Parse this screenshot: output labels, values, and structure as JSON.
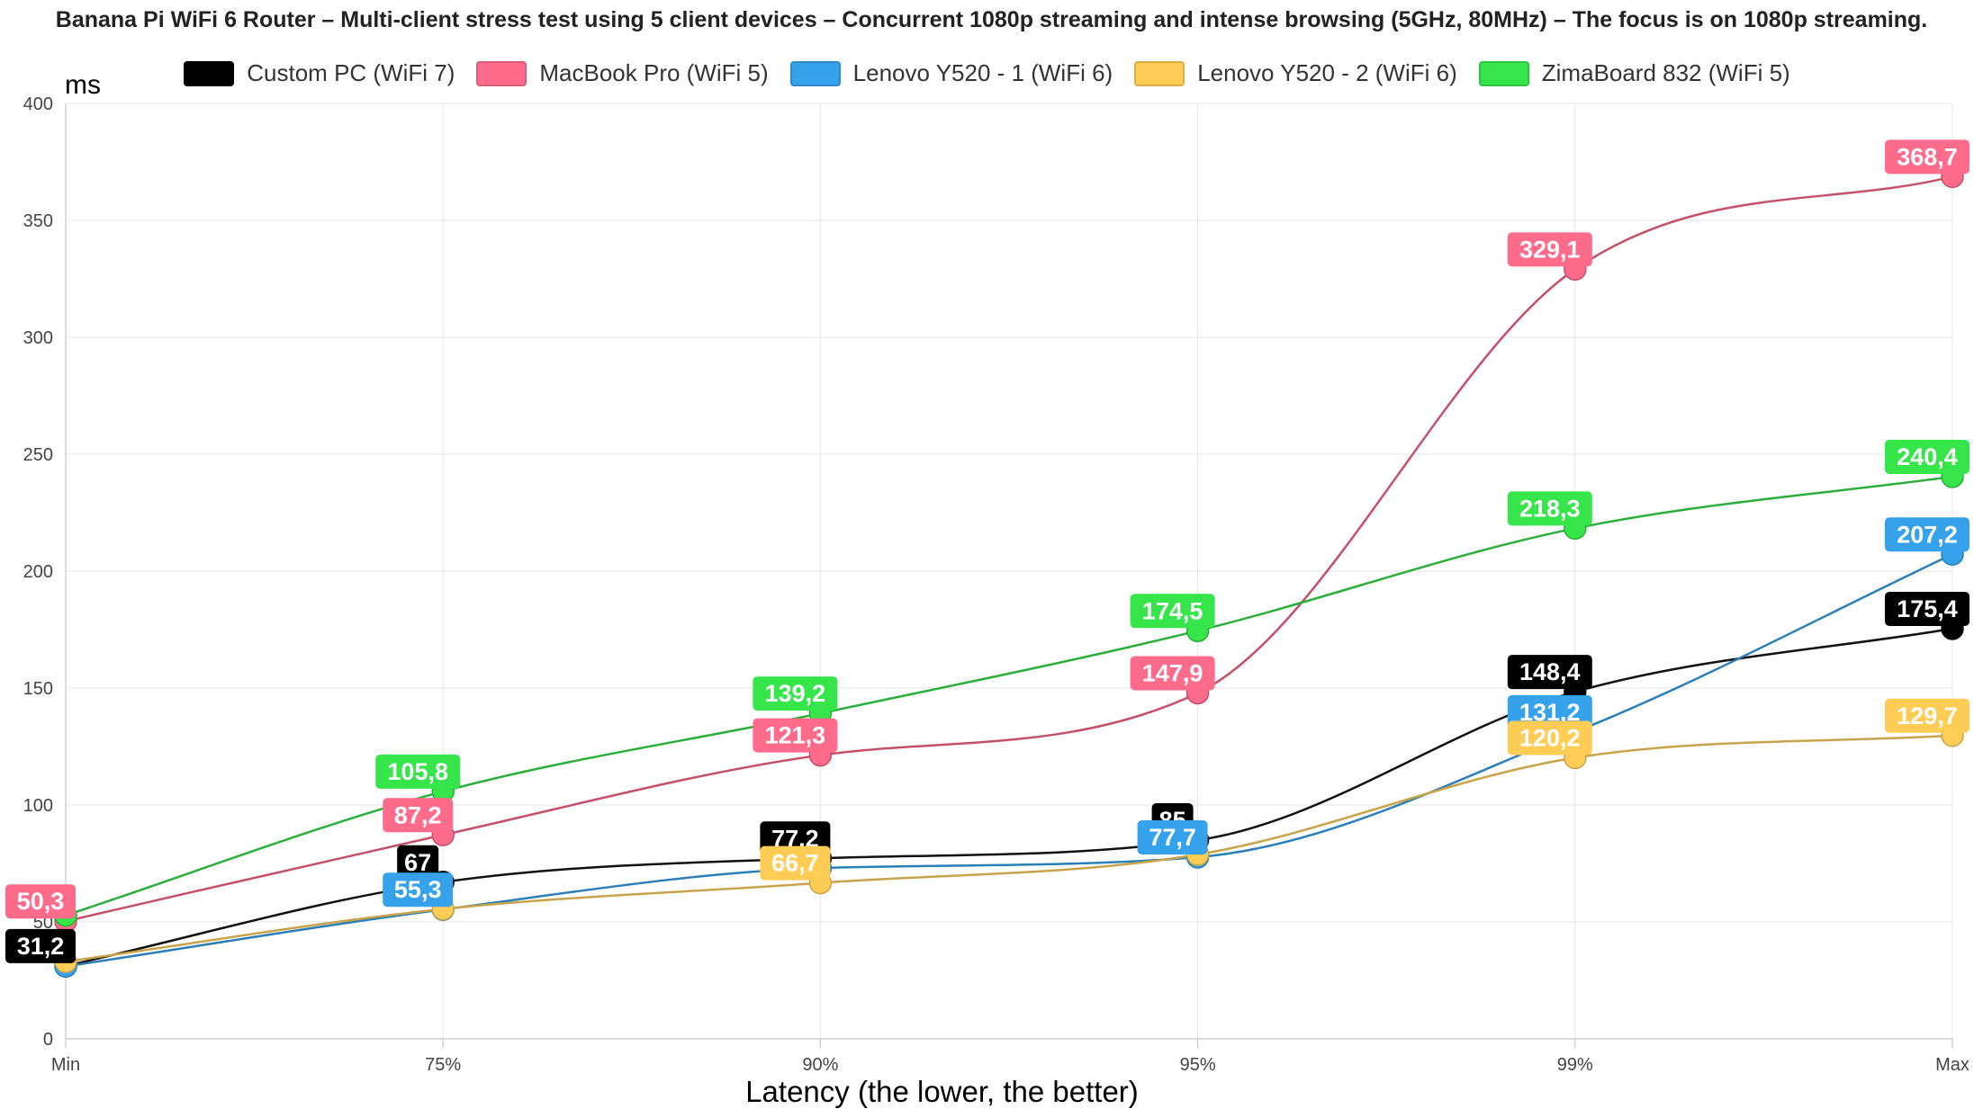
{
  "chart_data": {
    "type": "line",
    "title": "Banana Pi WiFi 6 Router – Multi-client stress test using 5 client devices – Concurrent 1080p streaming and intense browsing (5GHz, 80MHz) – The focus is on 1080p streaming.",
    "xlabel": "Latency (the lower, the better)",
    "ylabel": "ms",
    "categories": [
      "Min",
      "75%",
      "90%",
      "95%",
      "99%",
      "Max"
    ],
    "ylim": [
      0,
      400
    ],
    "yticks": [
      0,
      50,
      100,
      150,
      200,
      250,
      300,
      350,
      400
    ],
    "grid": true,
    "legend_position": "top",
    "series": [
      {
        "name": "Custom PC (WiFi 7)",
        "color": "#000000",
        "line_color": "#111111",
        "values": [
          31.2,
          67,
          77.2,
          85,
          148.4,
          175.4
        ],
        "labels": [
          "31,2",
          "67",
          "77,2",
          "85",
          "148,4",
          "175,4"
        ]
      },
      {
        "name": "MacBook Pro (WiFi 5)",
        "color": "#ff6b8a",
        "line_color": "#c4506a",
        "values": [
          50.3,
          87.2,
          121.3,
          147.9,
          329.1,
          368.7
        ],
        "labels": [
          "50,3",
          "87,2",
          "121,3",
          "147,9",
          "329,1",
          "368,7"
        ]
      },
      {
        "name": "Lenovo Y520 - 1 (WiFi 6)",
        "color": "#36a2eb",
        "line_color": "#2a7fb8",
        "values": [
          31,
          55.3,
          73,
          77.7,
          131.2,
          207.2
        ],
        "labels": [
          "",
          "55,3",
          "",
          "77,7",
          "131,2",
          "207,2"
        ]
      },
      {
        "name": "Lenovo Y520 - 2 (WiFi 6)",
        "color": "#ffcd56",
        "line_color": "#c9a34a",
        "values": [
          33,
          55.5,
          66.7,
          78.8,
          120.2,
          129.7
        ],
        "labels": [
          "",
          "",
          "66,7",
          "",
          "120,2",
          "129,7"
        ]
      },
      {
        "name": "ZimaBoard 832 (WiFi 5)",
        "color": "#35e54a",
        "line_color": "#2ab03a",
        "values": [
          52.8,
          105.8,
          139.2,
          174.5,
          218.3,
          240.4
        ],
        "labels": [
          "",
          "105,8",
          "139,2",
          "174,5",
          "218,3",
          "240,4"
        ]
      }
    ]
  }
}
